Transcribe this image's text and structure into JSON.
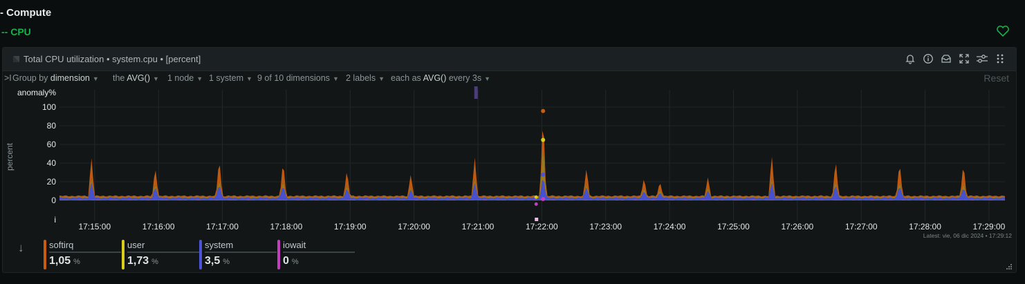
{
  "section": {
    "title": "- Compute",
    "subtitle": "-- CPU"
  },
  "card": {
    "title": "Total CPU utilization",
    "context": "• system.cpu",
    "units": "• [percent]"
  },
  "filters": {
    "expand": ">I",
    "group_by_label": "Group by",
    "group_by_value": "dimension",
    "agg_the": "the",
    "agg_value": "AVG()",
    "nodes": "1 node",
    "instances": "1 system",
    "dimensions": "9 of 10 dimensions",
    "labels": "2 labels",
    "each_as": "each as",
    "each_as_value": "AVG()",
    "every": "every 3s",
    "reset": "Reset"
  },
  "chart_data": {
    "type": "area",
    "stacked": true,
    "ylabel": "percent",
    "anomaly_label": "anomaly%",
    "info_row_label": "i",
    "ylim": [
      0,
      100
    ],
    "yticks": [
      0,
      20,
      40,
      60,
      80,
      100
    ],
    "grid": true,
    "x_tick_labels": [
      "17:15:00",
      "17:16:00",
      "17:17:00",
      "17:18:00",
      "17:19:00",
      "17:20:00",
      "17:21:00",
      "17:22:00",
      "17:23:00",
      "17:24:00",
      "17:25:00",
      "17:26:00",
      "17:27:00",
      "17:28:00",
      "17:29:00"
    ],
    "x_range_minutes": [
      14.45,
      29.25
    ],
    "series": [
      {
        "name": "iowait",
        "color": "#c13fbd",
        "baseline": 0.6
      },
      {
        "name": "system",
        "color": "#4b53d8",
        "baseline": 2.0
      },
      {
        "name": "user",
        "color": "#a07f22",
        "baseline": 1.2
      },
      {
        "name": "softirq",
        "color": "#c85d11",
        "baseline": 1.0
      }
    ],
    "spikes": [
      {
        "t": 14.95,
        "system": 16,
        "user": 4,
        "softirq": 22
      },
      {
        "t": 15.95,
        "system": 12,
        "user": 3,
        "softirq": 17
      },
      {
        "t": 16.95,
        "system": 16,
        "user": 4,
        "softirq": 22
      },
      {
        "t": 17.95,
        "system": 14,
        "user": 4,
        "softirq": 20
      },
      {
        "t": 18.95,
        "system": 10,
        "user": 3,
        "softirq": 15
      },
      {
        "t": 19.95,
        "system": 9,
        "user": 2,
        "softirq": 13
      },
      {
        "t": 20.95,
        "system": 16,
        "user": 4,
        "softirq": 23
      },
      {
        "t": 22.02,
        "system": 25,
        "user": 36,
        "softirq": 30
      },
      {
        "t": 22.7,
        "system": 12,
        "user": 3,
        "softirq": 16
      },
      {
        "t": 23.6,
        "system": 8,
        "user": 2,
        "softirq": 10
      },
      {
        "t": 23.85,
        "system": 6,
        "user": 2,
        "softirq": 8
      },
      {
        "t": 24.6,
        "system": 8,
        "user": 2,
        "softirq": 10
      },
      {
        "t": 25.6,
        "system": 16,
        "user": 4,
        "softirq": 24
      },
      {
        "t": 26.6,
        "system": 14,
        "user": 4,
        "softirq": 22
      },
      {
        "t": 27.6,
        "system": 14,
        "user": 4,
        "softirq": 20
      },
      {
        "t": 28.6,
        "system": 12,
        "user": 4,
        "softirq": 20
      }
    ],
    "anomaly_marker_t": 20.97,
    "latest_text": "Latest:  vie, 06 dic 2024 • 17:29:12"
  },
  "legend": [
    {
      "name": "softirq",
      "value": "1,05",
      "unit": "%",
      "color": "#c85d11"
    },
    {
      "name": "user",
      "value": "1,73",
      "unit": "%",
      "color": "#d9cf1a"
    },
    {
      "name": "system",
      "value": "3,5",
      "unit": "%",
      "color": "#4b53d8"
    },
    {
      "name": "iowait",
      "value": "0",
      "unit": "%",
      "color": "#c13fbd"
    }
  ],
  "icons": {
    "heart": "heart-icon",
    "alert": "bell-icon",
    "info": "info-icon",
    "tray": "inbox-icon",
    "fullscreen": "expand-icon",
    "settings": "sliders-icon",
    "drag": "drag-handle-icon"
  }
}
